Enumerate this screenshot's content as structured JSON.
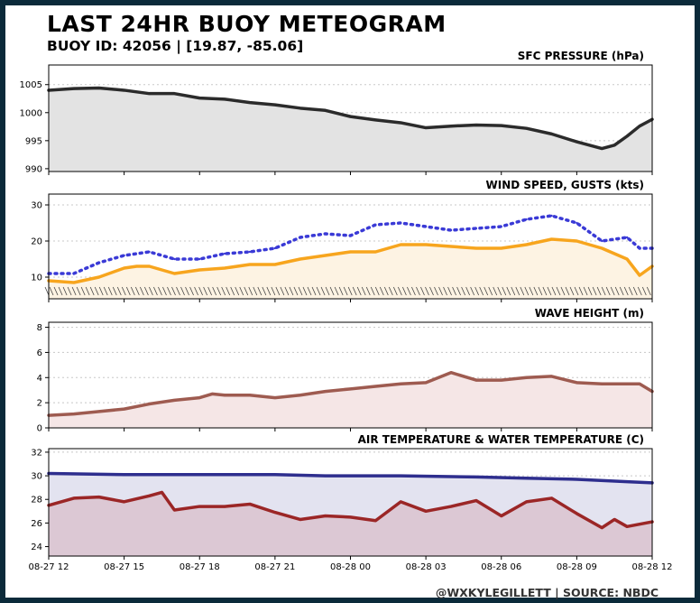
{
  "title": "LAST 24HR BUOY METEOGRAM",
  "subtitle": "BUOY ID: 42056 | [19.87, -85.06]",
  "footer": "@WXKYLEGILLETT | SOURCE: NBDC",
  "colors": {
    "pressure_line": "#2b2b2b",
    "pressure_fill": "#e3e3e3",
    "wind": "#f7a51e",
    "wind_fill": "#fdf3e3",
    "gust": "#3a3ad6",
    "wave": "#9e5b50",
    "wave_fill": "#f5e6e6",
    "water": "#2e2e8e",
    "water_fill": "#e3e3f0",
    "air": "#9b2626",
    "air_fill": "#dcc8d4"
  },
  "chart_data": [
    {
      "type": "area",
      "title": "SFC PRESSURE (hPa)",
      "x_ticks": [
        "08-27 12",
        "08-27 15",
        "08-27 18",
        "08-27 21",
        "08-28 00",
        "08-28 03",
        "08-28 06",
        "08-28 09",
        "08-28 12"
      ],
      "ylim": [
        989.5,
        1008.5
      ],
      "y_ticks": [
        990,
        995,
        1000,
        1005
      ],
      "grid": "horizontal dotted",
      "series": [
        {
          "name": "pressure",
          "x_hours": [
            0,
            1,
            2,
            3,
            4,
            5,
            6,
            7,
            8,
            9,
            10,
            11,
            12,
            13,
            14,
            15,
            16,
            17,
            18,
            19,
            20,
            21,
            22,
            22.5,
            23,
            23.5,
            24
          ],
          "values": [
            1004.0,
            1004.3,
            1004.4,
            1004.0,
            1003.4,
            1003.4,
            1002.6,
            1002.4,
            1001.8,
            1001.4,
            1000.8,
            1000.4,
            999.3,
            998.7,
            998.2,
            997.3,
            997.6,
            997.8,
            997.7,
            997.2,
            996.2,
            994.8,
            993.6,
            994.2,
            995.8,
            997.6,
            998.8
          ]
        }
      ]
    },
    {
      "type": "line",
      "title": "WIND SPEED, GUSTS (kts)",
      "x_ticks": [
        "08-27 12",
        "08-27 15",
        "08-27 18",
        "08-27 21",
        "08-28 00",
        "08-28 03",
        "08-28 06",
        "08-28 09",
        "08-28 12"
      ],
      "ylim": [
        4,
        33
      ],
      "y_ticks": [
        10,
        20,
        30
      ],
      "grid": "horizontal dotted",
      "series": [
        {
          "name": "wind speed",
          "x_hours": [
            0,
            1,
            2,
            3,
            3.5,
            4,
            5,
            6,
            7,
            8,
            9,
            10,
            11,
            12,
            13,
            14,
            15,
            16,
            17,
            18,
            19,
            20,
            21,
            22,
            23,
            23.5,
            24
          ],
          "values": [
            9,
            8.5,
            10,
            12.5,
            13,
            13,
            11,
            12,
            12.5,
            13.5,
            13.5,
            15,
            16,
            17,
            17,
            19,
            19,
            18.5,
            18,
            18,
            19,
            20.5,
            20,
            18,
            15,
            10.5,
            13
          ]
        },
        {
          "name": "gusts",
          "x_hours": [
            0,
            1,
            2,
            3,
            4,
            5,
            6,
            7,
            8,
            9,
            10,
            11,
            12,
            13,
            14,
            15,
            16,
            17,
            18,
            19,
            20,
            21,
            22,
            23,
            23.5,
            24
          ],
          "values": [
            11,
            11,
            14,
            16,
            17,
            15,
            15,
            16.5,
            17,
            18,
            21,
            22,
            21.5,
            24.5,
            25,
            24,
            23,
            23.5,
            24,
            26,
            27,
            25,
            20,
            21,
            18,
            18
          ]
        }
      ]
    },
    {
      "type": "area",
      "title": "WAVE HEIGHT (m)",
      "x_ticks": [
        "08-27 12",
        "08-27 15",
        "08-27 18",
        "08-27 21",
        "08-28 00",
        "08-28 03",
        "08-28 06",
        "08-28 09",
        "08-28 12"
      ],
      "ylim": [
        0,
        8.4
      ],
      "y_ticks": [
        0,
        2,
        4,
        6,
        8
      ],
      "grid": "horizontal dotted",
      "series": [
        {
          "name": "wave height",
          "x_hours": [
            0,
            1,
            2,
            3,
            4,
            5,
            6,
            6.5,
            7,
            8,
            9,
            10,
            11,
            12,
            13,
            14,
            15,
            16,
            17,
            18,
            19,
            20,
            21,
            22,
            23,
            23.5,
            24
          ],
          "values": [
            1.0,
            1.1,
            1.3,
            1.5,
            1.9,
            2.2,
            2.4,
            2.7,
            2.6,
            2.6,
            2.4,
            2.6,
            2.9,
            3.1,
            3.3,
            3.5,
            3.6,
            4.4,
            3.8,
            3.8,
            4.0,
            4.1,
            3.6,
            3.5,
            3.5,
            3.5,
            2.9
          ]
        }
      ]
    },
    {
      "type": "area",
      "title": "AIR TEMPERATURE & WATER TEMPERATURE (C)",
      "x_ticks": [
        "08-27 12",
        "08-27 15",
        "08-27 18",
        "08-27 21",
        "08-28 00",
        "08-28 03",
        "08-28 06",
        "08-28 09",
        "08-28 12"
      ],
      "ylim": [
        23.2,
        32.3
      ],
      "y_ticks": [
        24,
        26,
        28,
        30,
        32
      ],
      "grid": "horizontal dotted",
      "series": [
        {
          "name": "water temperature",
          "x_hours": [
            0,
            3,
            6,
            9,
            11,
            14,
            17,
            19,
            21,
            23,
            24
          ],
          "values": [
            30.2,
            30.1,
            30.1,
            30.1,
            30.0,
            30.0,
            29.9,
            29.8,
            29.7,
            29.5,
            29.4
          ]
        },
        {
          "name": "air temperature",
          "x_hours": [
            0,
            1,
            2,
            3,
            4,
            4.5,
            5,
            6,
            7,
            8,
            9,
            10,
            11,
            12,
            13,
            14,
            15,
            16,
            17,
            18,
            19,
            20,
            21,
            22,
            22.5,
            23,
            24
          ],
          "values": [
            27.5,
            28.1,
            28.2,
            27.8,
            28.3,
            28.6,
            27.1,
            27.4,
            27.4,
            27.6,
            26.9,
            26.3,
            26.6,
            26.5,
            26.2,
            27.8,
            27.0,
            27.4,
            27.9,
            26.6,
            27.8,
            28.1,
            26.8,
            25.6,
            26.3,
            25.7,
            26.1
          ]
        }
      ]
    }
  ]
}
